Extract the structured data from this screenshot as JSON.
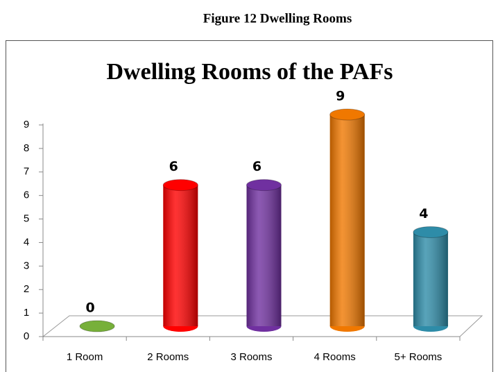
{
  "caption": "Figure 12 Dwelling Rooms",
  "chart_data": {
    "type": "bar3d",
    "title": "Dwelling Rooms of the PAFs",
    "categories": [
      "1 Room",
      "2 Rooms",
      "3 Rooms",
      "4 Rooms",
      "5+ Rooms"
    ],
    "values": [
      0,
      6,
      6,
      9,
      4
    ],
    "colors": [
      "#77b03a",
      "#ff0000",
      "#7030a0",
      "#f07800",
      "#2e8ca8"
    ],
    "ylim": [
      0,
      9
    ],
    "yticks": [
      0,
      1,
      2,
      3,
      4,
      5,
      6,
      7,
      8,
      9
    ],
    "grid": false
  }
}
